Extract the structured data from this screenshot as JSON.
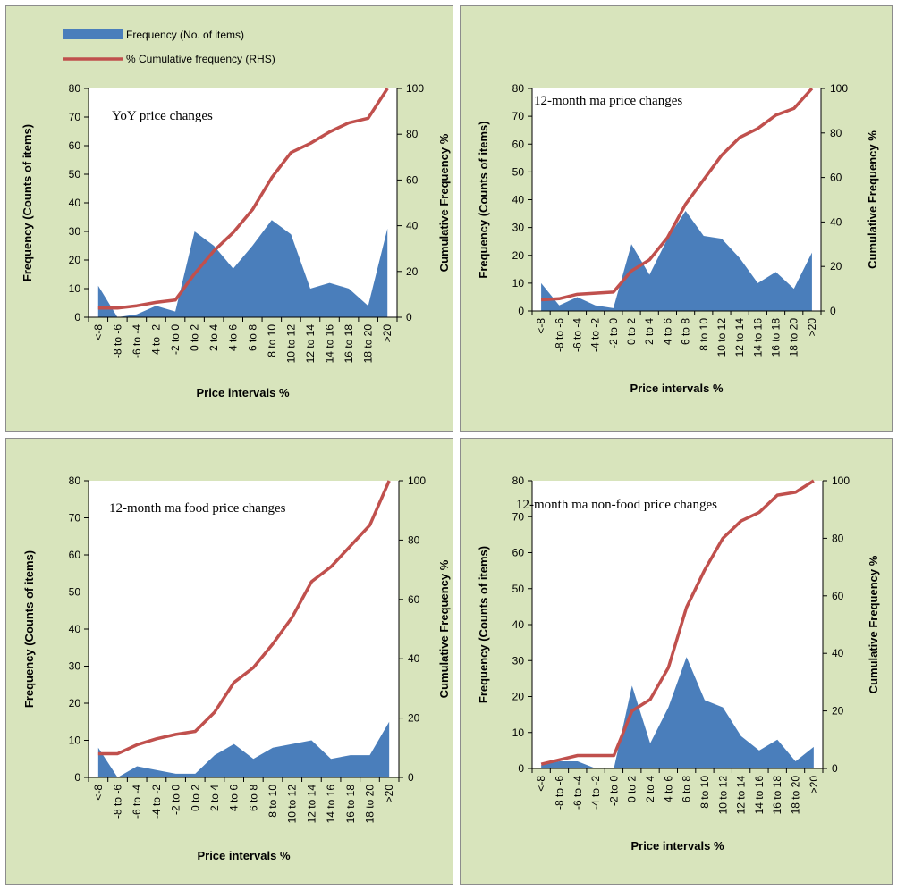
{
  "colors": {
    "panel_background": "#d8e4bc",
    "plot_background": "#ffffff",
    "frequency_fill": "#4a7ebb",
    "cumulative_line": "#c0504d",
    "axis": "#000000"
  },
  "legend": {
    "frequency": "Frequency (No. of items)",
    "cumulative": "% Cumulative frequency (RHS)"
  },
  "chart_data": [
    {
      "type": "area",
      "title": "YoY price changes",
      "xlabel": "Price intervals %",
      "ylabel": "Frequency  (Counts of items)",
      "y2label": "Cumulative Frequency %",
      "categories": [
        "<-8",
        "-8 to -6",
        "-6 to -4",
        "-4 to -2",
        "-2 to 0",
        "0 to 2",
        "2 to 4",
        "4 to 6",
        "6 to 8",
        "8 to 10",
        "10 to 12",
        "12 to 14",
        "14 to 16",
        "16 to 18",
        "18 to 20",
        ">20"
      ],
      "ylim": [
        0,
        80
      ],
      "yticks": [
        0,
        10,
        20,
        30,
        40,
        50,
        60,
        70,
        80
      ],
      "y2lim": [
        0,
        100
      ],
      "y2ticks": [
        0,
        20,
        40,
        60,
        80,
        100
      ],
      "legend": "top-left",
      "series": [
        {
          "name": "Frequency (No. of items)",
          "type": "area",
          "axis": "left",
          "values": [
            11,
            0,
            1,
            4,
            2,
            30,
            25,
            17,
            25,
            34,
            29,
            10,
            12,
            10,
            4,
            31
          ]
        },
        {
          "name": "% Cumulative frequency (RHS)",
          "type": "line",
          "axis": "right",
          "values": [
            4,
            4,
            5,
            6.5,
            7.5,
            19,
            29,
            37,
            47,
            61,
            72,
            76,
            81,
            85,
            87,
            100
          ]
        }
      ]
    },
    {
      "type": "area",
      "title": "12-month  ma  price  changes",
      "xlabel": "Price intervals %",
      "ylabel": "Frequency  (Counts of items)",
      "y2label": "Cumulative Frequency %",
      "categories": [
        "<-8",
        "-8 to -6",
        "-6 to -4",
        "-4 to -2",
        "-2 to 0",
        "0 to 2",
        "2 to 4",
        "4 to 6",
        "6 to 8",
        "8 to 10",
        "10 to 12",
        "12 to 14",
        "14 to 16",
        "16 to 18",
        "18 to 20",
        ">20"
      ],
      "ylim": [
        0,
        80
      ],
      "yticks": [
        0,
        10,
        20,
        30,
        40,
        50,
        60,
        70,
        80
      ],
      "y2lim": [
        0,
        100
      ],
      "y2ticks": [
        0,
        20,
        40,
        60,
        80,
        100
      ],
      "series": [
        {
          "name": "Frequency (No. of items)",
          "type": "area",
          "axis": "left",
          "values": [
            10,
            2,
            5,
            2,
            1,
            24,
            13,
            26,
            36,
            27,
            26,
            19,
            10,
            14,
            8,
            21
          ]
        },
        {
          "name": "% Cumulative frequency (RHS)",
          "type": "line",
          "axis": "right",
          "values": [
            5,
            5.5,
            7.5,
            8,
            8.5,
            18,
            23,
            33,
            48,
            59,
            70,
            78,
            82,
            88,
            91,
            100
          ]
        }
      ]
    },
    {
      "type": "area",
      "title": "12-month  ma  food price  changes",
      "xlabel": "Price intervals %",
      "ylabel": "Frequency  (Counts of items)",
      "y2label": "Cumulative Frequency %",
      "categories": [
        "<-8",
        "-8 to -6",
        "-6 to -4",
        "-4 to -2",
        "-2 to 0",
        "0 to 2",
        "2 to 4",
        "4 to 6",
        "6 to 8",
        "8 to 10",
        "10 to 12",
        "12 to 14",
        "14 to 16",
        "16 to 18",
        "18 to 20",
        ">20"
      ],
      "ylim": [
        0,
        80
      ],
      "yticks": [
        0,
        10,
        20,
        30,
        40,
        50,
        60,
        70,
        80
      ],
      "y2lim": [
        0,
        100
      ],
      "y2ticks": [
        0,
        20,
        40,
        60,
        80,
        100
      ],
      "series": [
        {
          "name": "Frequency (No. of items)",
          "type": "area",
          "axis": "left",
          "values": [
            8,
            0,
            3,
            2,
            1,
            1,
            6,
            9,
            5,
            8,
            9,
            10,
            5,
            6,
            6,
            15
          ]
        },
        {
          "name": "% Cumulative frequency (RHS)",
          "type": "line",
          "axis": "right",
          "values": [
            8,
            8,
            11,
            13,
            14.5,
            15.5,
            22,
            32,
            37,
            45,
            54,
            66,
            71,
            78,
            85,
            100
          ]
        }
      ]
    },
    {
      "type": "area",
      "title": "12-month  ma  non-food price  changes",
      "xlabel": "Price intervals %",
      "ylabel": "Frequency  (Counts of items)",
      "y2label": "Cumulative Frequency %",
      "categories": [
        "<-8",
        "-8 to -6",
        "-6 to -4",
        "-4 to -2",
        "-2 to 0",
        "0 to 2",
        "2 to 4",
        "4 to 6",
        "6 to 8",
        "8 to 10",
        "10 to 12",
        "12 to 14",
        "14 to 16",
        "16 to 18",
        "18 to 20",
        ">20"
      ],
      "ylim": [
        0,
        80
      ],
      "yticks": [
        0,
        10,
        20,
        30,
        40,
        50,
        60,
        70,
        80
      ],
      "y2lim": [
        0,
        100
      ],
      "y2ticks": [
        0,
        20,
        40,
        60,
        80,
        100
      ],
      "series": [
        {
          "name": "Frequency (No. of items)",
          "type": "area",
          "axis": "left",
          "values": [
            1,
            2,
            2,
            0,
            0,
            23,
            7,
            17,
            31,
            19,
            17,
            9,
            5,
            8,
            2,
            6
          ]
        },
        {
          "name": "% Cumulative frequency (RHS)",
          "type": "line",
          "axis": "right",
          "values": [
            1.5,
            3,
            4.5,
            4.5,
            4.5,
            20,
            24,
            35,
            56,
            69,
            80,
            86,
            89,
            95,
            96,
            100
          ]
        }
      ]
    }
  ]
}
